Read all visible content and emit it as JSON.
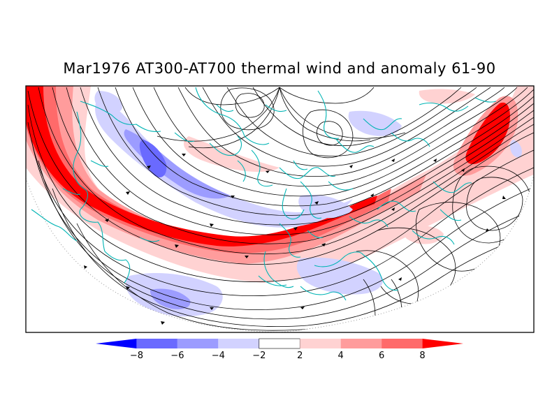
{
  "title": "Mar1976 AT300-AT700 thermal wind and anomaly 61-90",
  "colorbar": {
    "ticks": [
      "-8",
      "-6",
      "-4",
      "-2",
      "2",
      "4",
      "6",
      "8"
    ],
    "colors": [
      "#0000ff",
      "#6a6aff",
      "#9c9cff",
      "#d2d2ff",
      "#ffffff",
      "#ffd2d2",
      "#ff9c9c",
      "#ff6a6a",
      "#ff0000"
    ]
  }
}
